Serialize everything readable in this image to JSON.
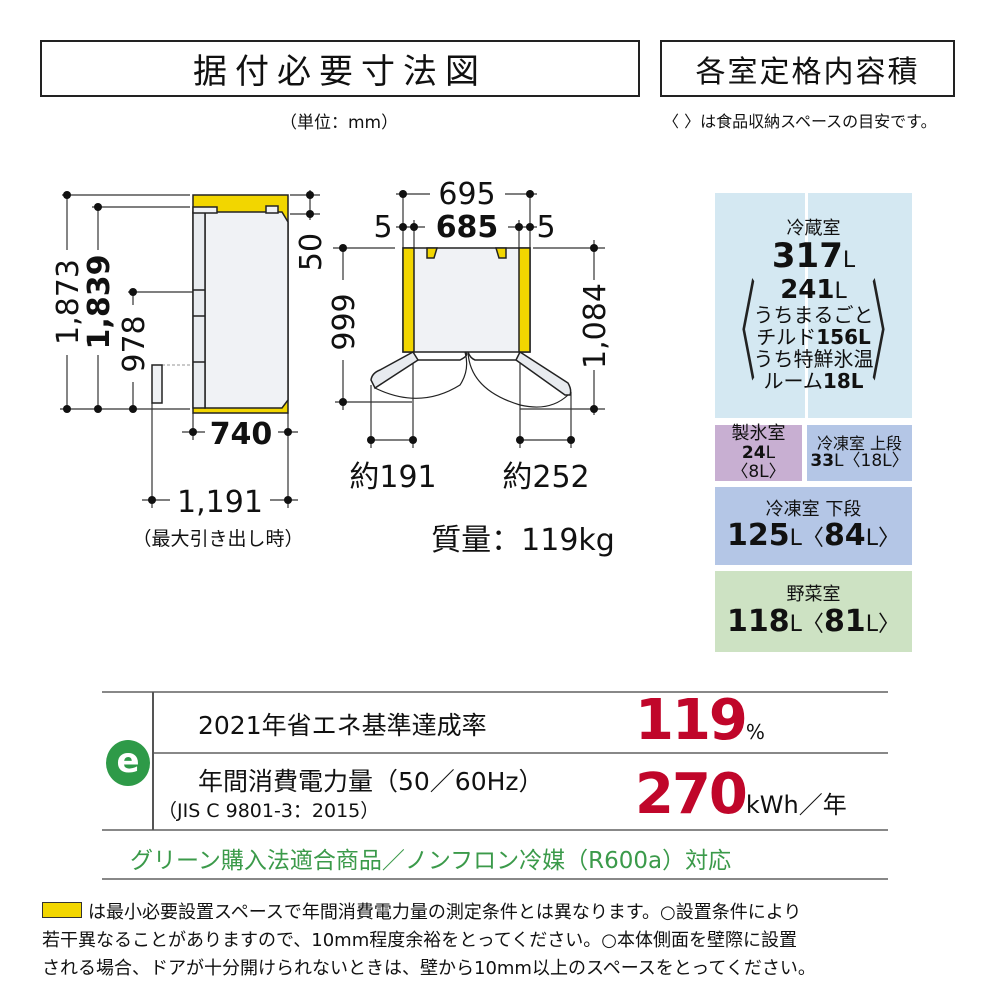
{
  "header": {
    "title": "据付必要寸法図",
    "unit_note": "（単位：mm）",
    "capacity_title": "各室定格内容積",
    "capacity_note": "〈 〉は食品収納スペースの目安です。"
  },
  "side_view": {
    "height_total": "1,873",
    "height_body": "1,839",
    "height_drawer": "978",
    "top_clearance": "50",
    "depth": "740",
    "depth_drawer_open": "1,191",
    "drawer_open_note": "（最大引き出し時）"
  },
  "front_view": {
    "width_total": "695",
    "width_body": "685",
    "side_gap_left": "5",
    "side_gap_right": "5",
    "depth_door": "999",
    "depth_door_open": "1,084",
    "left_door_swing": "約191",
    "right_door_swing": "約252"
  },
  "mass": "質量：119kg",
  "capacity": {
    "fridge": {
      "label": "冷蔵室",
      "total": "317",
      "unit": "L",
      "storage": "241",
      "storage_unit": "L",
      "chilled_1": "うちまるごと",
      "chilled_2": "チルド",
      "chilled_value": "156L",
      "special_1": "うち特鮮氷温",
      "special_2": "ルーム",
      "special_value": "18L"
    },
    "ice": {
      "label": "製氷室",
      "value": "24",
      "unit": "L",
      "storage": "〈8L〉"
    },
    "freezer_upper": {
      "label": "冷凍室 上段",
      "value": "33",
      "unit": "L",
      "storage": "〈18L〉"
    },
    "freezer_lower": {
      "label": "冷凍室 下段",
      "value": "125",
      "unit": "L",
      "storage_open": "〈",
      "storage": "84",
      "storage_close": "L〉"
    },
    "vegetable": {
      "label": "野菜室",
      "value": "118",
      "unit": "L",
      "storage_open": "〈",
      "storage": "81",
      "storage_close": "L〉"
    }
  },
  "energy": {
    "rate_label": "2021年省エネ基準達成率",
    "rate_value": "119",
    "rate_unit": "%",
    "power_label": "年間消費電力量（50／60Hz）",
    "power_standard": "（JIS C 9801-3：2015）",
    "power_value": "270",
    "power_unit": "kWh／年",
    "green_note": "グリーン購入法適合商品／ノンフロン冷媒（R600a）対応",
    "logo_letter": "e"
  },
  "footer": {
    "line1": "は最小必要設置スペースで年間消費電力量の測定条件とは異なります。○設置条件により",
    "line2": "若干異なることがありますので、10mm程度余裕をとってください。○本体側面を壁際に設置",
    "line3": "される場合、ドアが十分開けられないときは、壁から10mm以上のスペースをとってください。"
  },
  "colors": {
    "clearance_yellow": "#f2d600",
    "fridge_panel": "#d4e8f2",
    "ice_panel": "#c8afd2",
    "freezer_panel": "#b4c6e6",
    "vegetable_panel": "#cde2c3",
    "accent_red": "#c0062a",
    "eco_green": "#2e9a48"
  }
}
